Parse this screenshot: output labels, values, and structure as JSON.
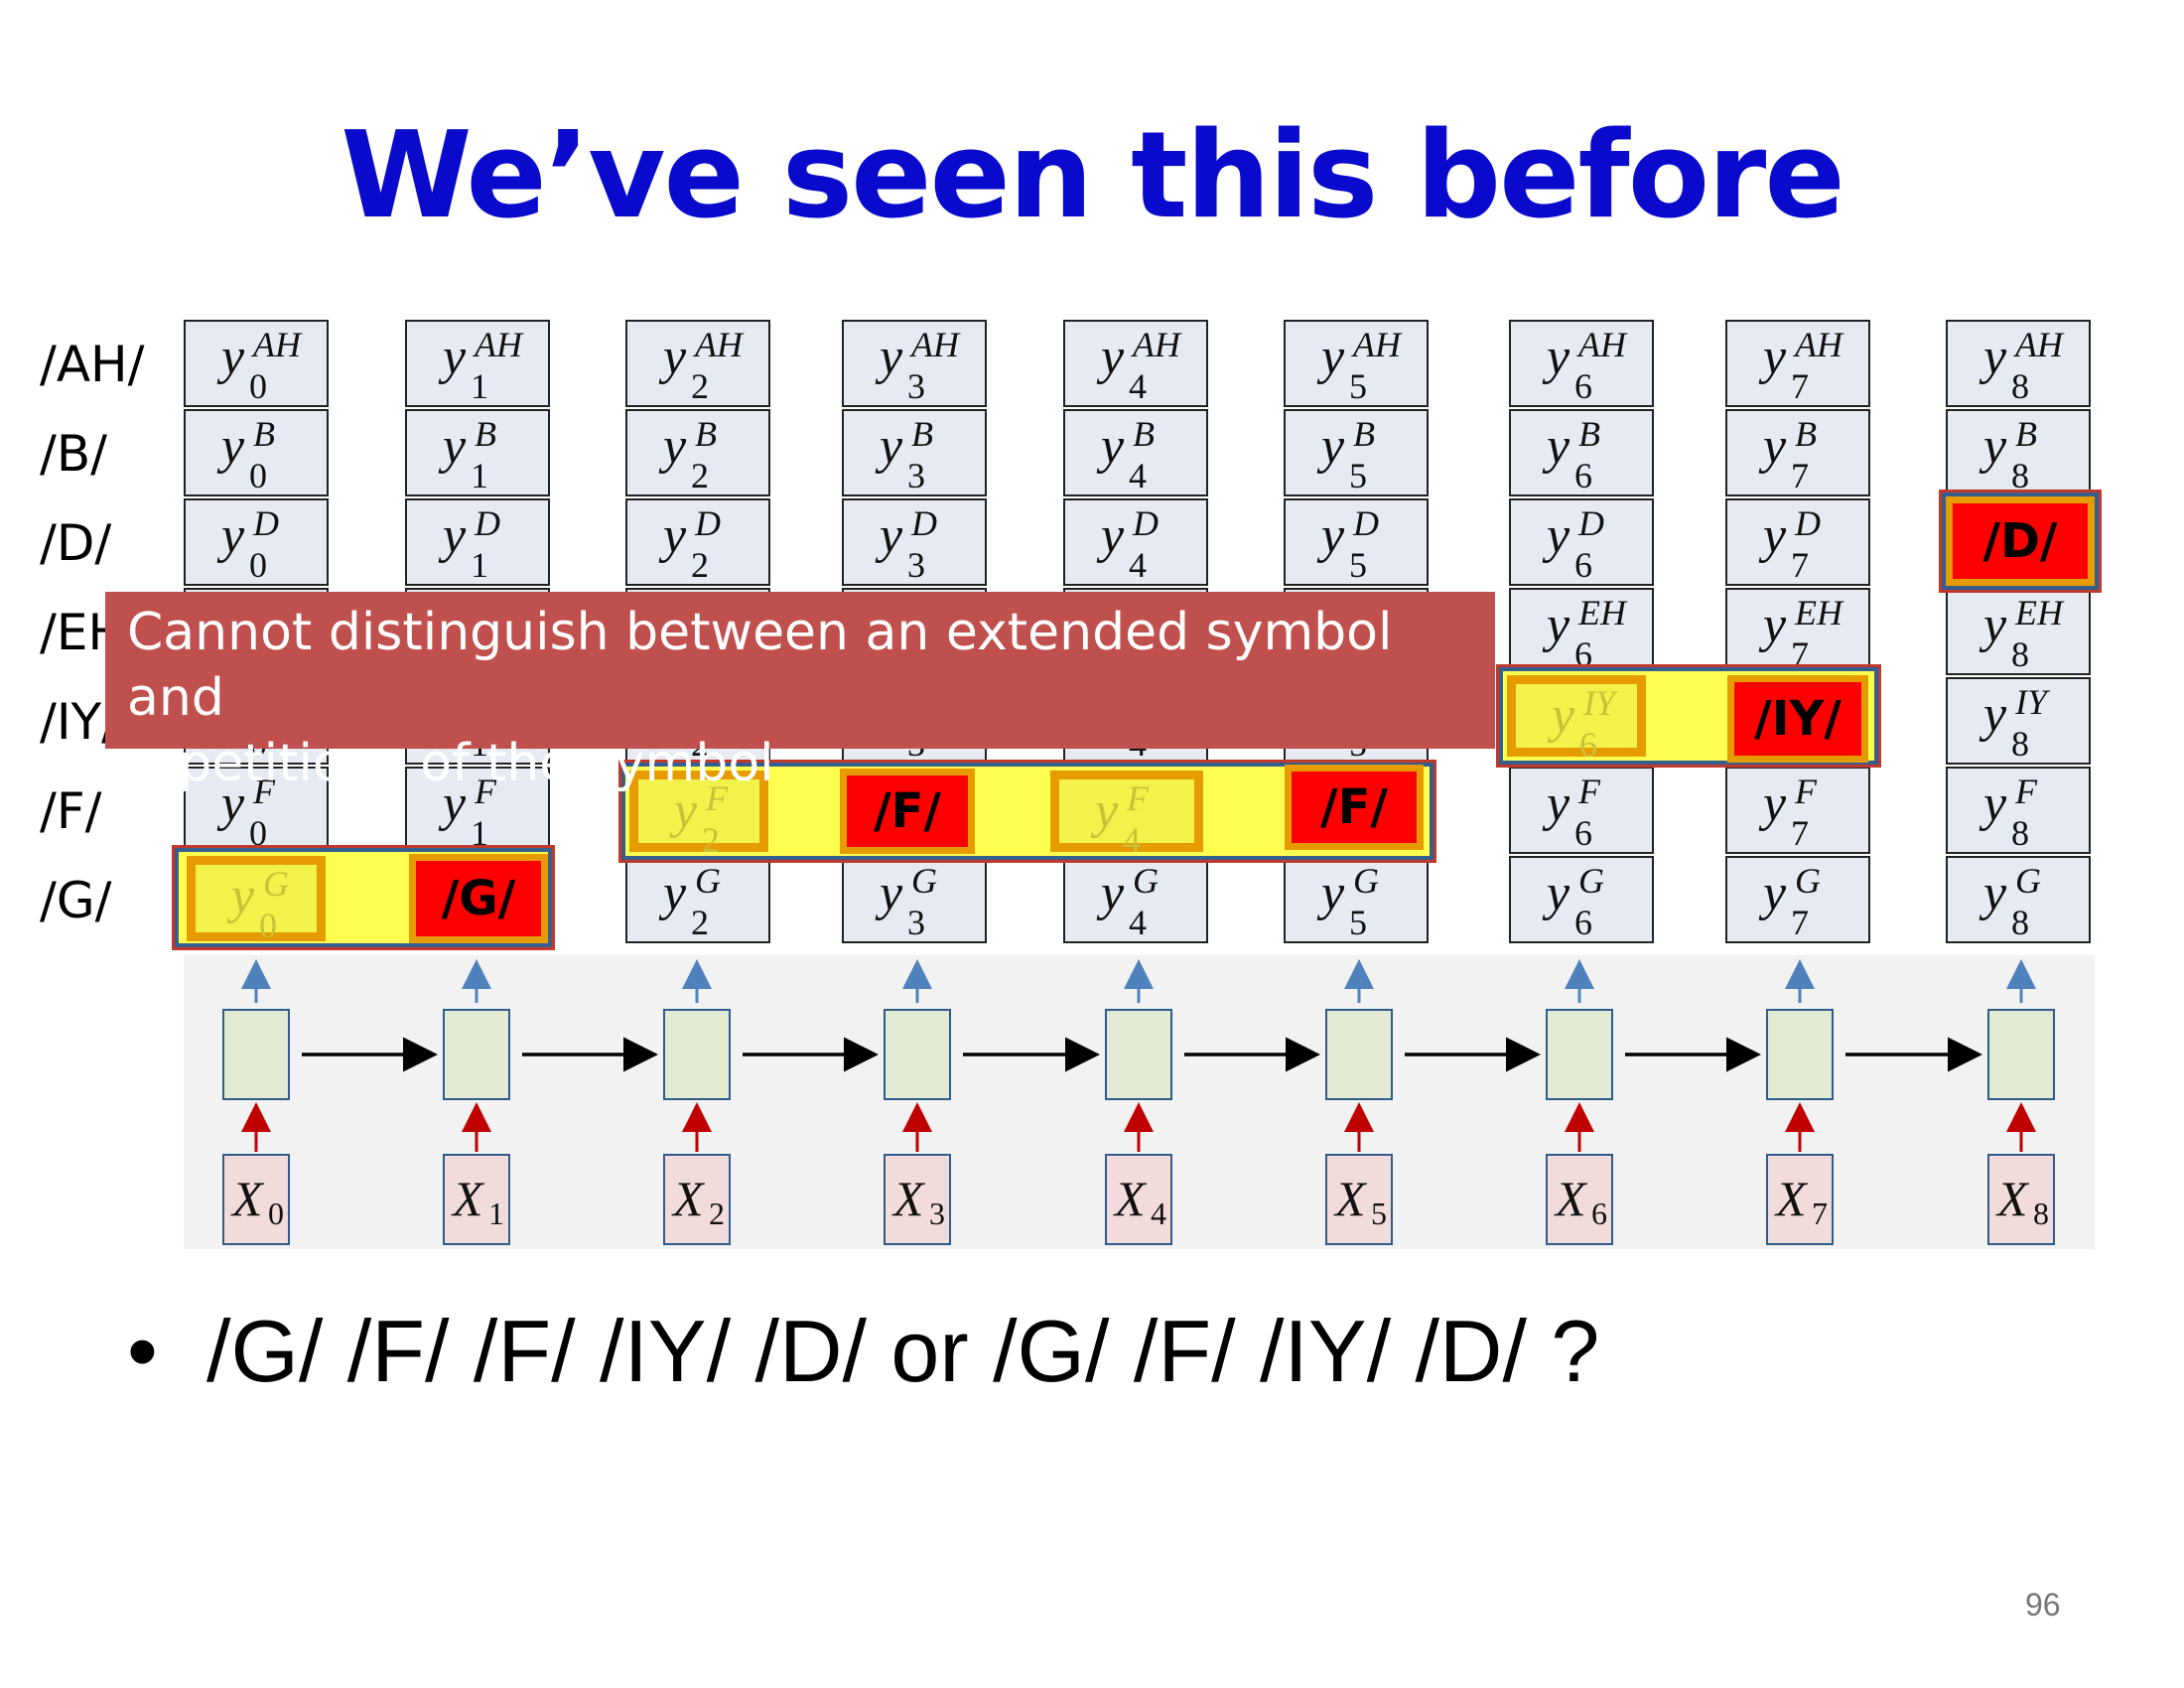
{
  "title": "We’ve seen this before",
  "row_labels": [
    "/AH/",
    "/B/",
    "/D/",
    "/EH/",
    "/IY/",
    "/F/",
    "/G/"
  ],
  "grid": {
    "output_symbol": "y",
    "input_symbol": "X",
    "time_indices": [
      "0",
      "1",
      "2",
      "3",
      "4",
      "5",
      "6",
      "7",
      "8"
    ],
    "superscripts": [
      "AH",
      "B",
      "D",
      "EH",
      "IY",
      "F",
      "G"
    ]
  },
  "highlights": {
    "red_labels": {
      "g": "/G/",
      "f_a": "/F/",
      "f_b": "/F/",
      "iy": "/IY/",
      "d": "/D/"
    },
    "faded_cells": [
      {
        "sup": "G",
        "sub": "0"
      },
      {
        "sup": "F",
        "sub": "2"
      },
      {
        "sup": "F",
        "sub": "4"
      },
      {
        "sup": "IY",
        "sub": "6"
      }
    ]
  },
  "callout": {
    "line1": "Cannot distinguish between an extended symbol and",
    "line2": "repetitions of the symbol"
  },
  "bullet": {
    "marker": "•",
    "text": "/G/ /F/ /F/ /IY/ /D/  or  /G/ /F/ /IY/ /D/ ?"
  },
  "page_number": "96",
  "colors": {
    "title": "#0a0acc",
    "path_highlight": "#ffff4f",
    "selected_symbol": "#ff0000",
    "callout": "#c0504d"
  }
}
